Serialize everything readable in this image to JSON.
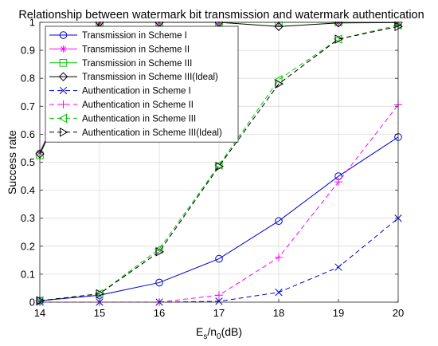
{
  "chart_data": {
    "type": "line",
    "title": "Relationship between watermark bit transmission and watermark authentication",
    "xlabel": {
      "main": "E",
      "sub1": "s",
      "slash": "/n",
      "sub2": "0",
      "suffix": "(dB)"
    },
    "ylabel": "Success rate",
    "x": [
      14,
      15,
      16,
      17,
      18,
      19,
      20
    ],
    "xlim": [
      14,
      20
    ],
    "ylim": [
      0,
      1
    ],
    "xticks": [
      "14",
      "15",
      "16",
      "17",
      "18",
      "19",
      "20"
    ],
    "yticks": [
      "0",
      "0.1",
      "0.2",
      "0.3",
      "0.4",
      "0.5",
      "0.6",
      "0.7",
      "0.8",
      "0.9",
      "1"
    ],
    "grid": true,
    "legend_position": "top-left",
    "series": [
      {
        "name": "Transmission in Scheme I",
        "color": "#0000d4",
        "dash": "solid",
        "marker": "circle",
        "values": [
          0.005,
          0.025,
          0.07,
          0.155,
          0.29,
          0.45,
          0.59
        ]
      },
      {
        "name": "Transmission in Scheme II",
        "color": "#ff00ff",
        "dash": "solid",
        "marker": "asterisk",
        "values": [
          0.535,
          1,
          1,
          1,
          1,
          1,
          1
        ]
      },
      {
        "name": "Transmission in Scheme III",
        "color": "#00c800",
        "dash": "solid",
        "marker": "square",
        "values": [
          0.525,
          1,
          1,
          1,
          1,
          1,
          1
        ]
      },
      {
        "name": "Transmission in Scheme III(Ideal)",
        "color": "#000000",
        "dash": "solid",
        "marker": "diamond",
        "values": [
          0.53,
          1,
          1,
          1,
          0.985,
          0.998,
          0.999
        ]
      },
      {
        "name": "Authentication in Scheme I",
        "color": "#0000d4",
        "dash": "dashed",
        "marker": "x",
        "values": [
          0,
          0,
          0,
          0.003,
          0.035,
          0.125,
          0.3
        ]
      },
      {
        "name": "Authentication in Scheme II",
        "color": "#ff00ff",
        "dash": "dashed",
        "marker": "plus",
        "values": [
          0,
          0,
          0,
          0.025,
          0.16,
          0.43,
          0.705
        ]
      },
      {
        "name": "Authentication in Scheme III",
        "color": "#00c800",
        "dash": "dashed",
        "marker": "triangle-left",
        "values": [
          0.005,
          0.03,
          0.19,
          0.49,
          0.795,
          0.94,
          0.99
        ]
      },
      {
        "name": "Authentication in Scheme III(Ideal)",
        "color": "#000000",
        "dash": "dashed",
        "marker": "triangle-right",
        "values": [
          0.005,
          0.03,
          0.18,
          0.485,
          0.78,
          0.94,
          0.985
        ]
      }
    ]
  }
}
